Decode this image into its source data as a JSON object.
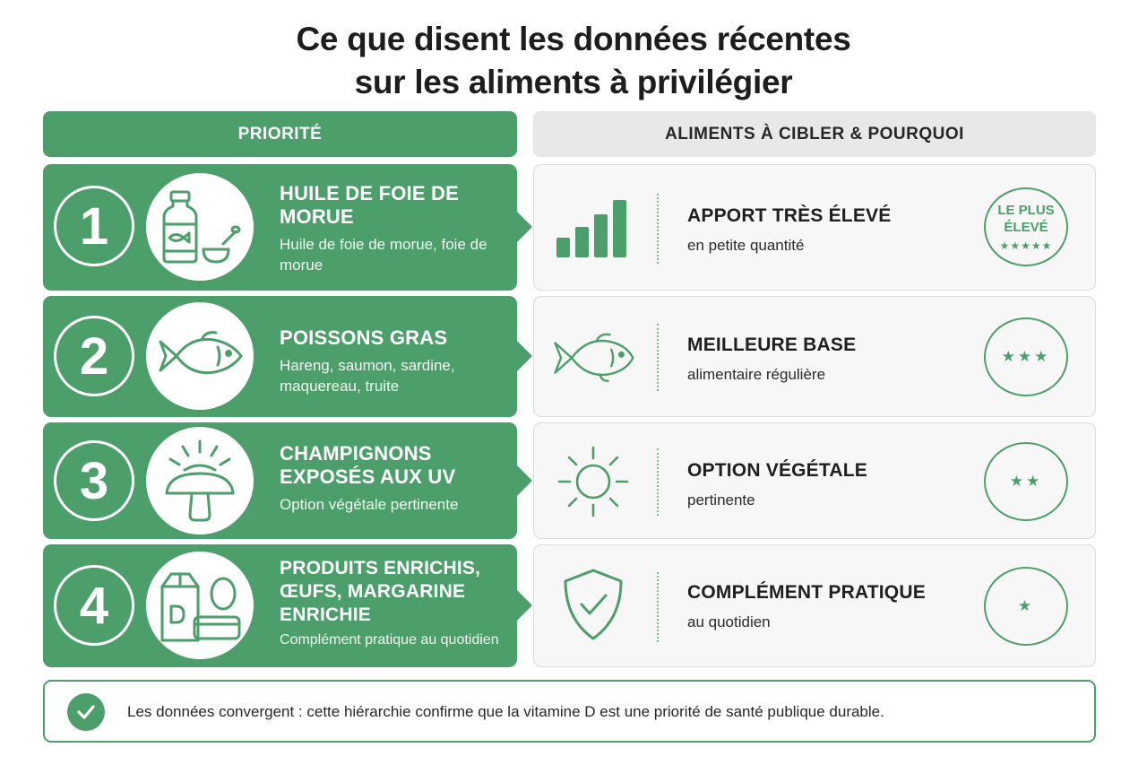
{
  "title": {
    "line1": "Ce que disent les données récentes",
    "line2": "sur les aliments à privilégier"
  },
  "headers": {
    "left": "PRIORITÉ",
    "right": "ALIMENTS À CIBLER & POURQUOI"
  },
  "accent_color": "#4c9e6a",
  "rows": [
    {
      "number": "1",
      "icon": "oil-bottle-spoon-icon",
      "title": "HUILE DE FOIE DE MORUE",
      "subtitle": "Huile de foie de morue, foie de morue",
      "right_icon": "bar-chart-icon",
      "right_title": "APPORT TRÈS ÉLEVÉ",
      "right_subtitle": "en petite quantité",
      "badge_text": "LE PLUS ÉLEVÉ",
      "stars": "★★★★★"
    },
    {
      "number": "2",
      "icon": "fish-icon",
      "title": "POISSONS GRAS",
      "subtitle": "Hareng, saumon, sardine, maquereau, truite",
      "right_icon": "fish-icon",
      "right_title": "MEILLEURE BASE",
      "right_subtitle": "alimentaire régulière",
      "stars": "★★★"
    },
    {
      "number": "3",
      "icon": "mushroom-uv-icon",
      "title": "CHAMPIGNONS EXPOSÉS AUX UV",
      "subtitle": "Option végétale pertinente",
      "right_icon": "sun-icon",
      "right_title": "OPTION VÉGÉTALE",
      "right_subtitle": "pertinente",
      "stars": "★★"
    },
    {
      "number": "4",
      "icon": "fortified-products-icon",
      "title": "PRODUITS ENRICHIS, ŒUFS, MARGARINE ENRICHIE",
      "subtitle": "Complément pratique au quotidien",
      "right_icon": "shield-check-icon",
      "right_title": "COMPLÉMENT PRATIQUE",
      "right_subtitle": "au quotidien",
      "stars": "★"
    }
  ],
  "footer": {
    "icon": "check-circle-icon",
    "text": "Les données convergent : cette hiérarchie confirme que la vitamine D est une priorité de santé publique durable."
  }
}
